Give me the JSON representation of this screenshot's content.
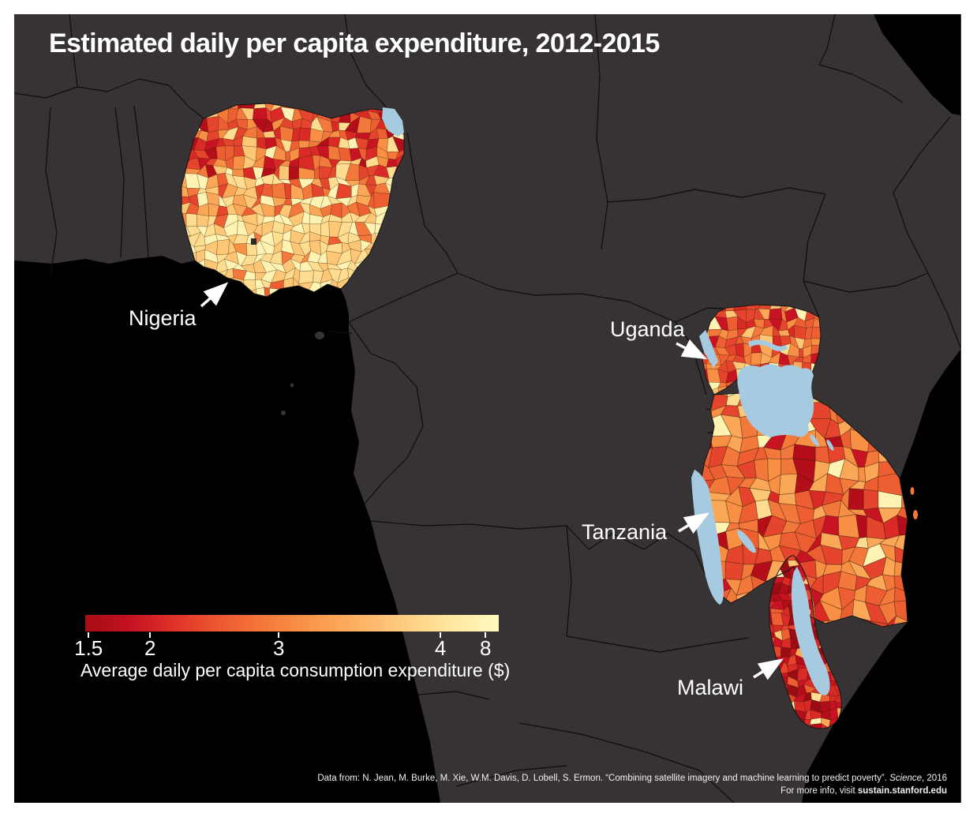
{
  "title": "Estimated daily per capita expenditure, 2012-2015",
  "map_labels": {
    "nigeria": "Nigeria",
    "uganda": "Uganda",
    "tanzania": "Tanzania",
    "malawi": "Malawi"
  },
  "legend": {
    "caption": "Average daily per capita consumption expenditure ($)",
    "ticks": [
      {
        "label": "1.5",
        "pos": 0.008
      },
      {
        "label": "2",
        "pos": 0.157
      },
      {
        "label": "3",
        "pos": 0.468
      },
      {
        "label": "4",
        "pos": 0.859
      },
      {
        "label": "8",
        "pos": 0.968
      }
    ],
    "gradient": [
      "#a50e15",
      "#c11020",
      "#dc2c26",
      "#ea512f",
      "#f26f38",
      "#f78b42",
      "#fba355",
      "#fcbb6e",
      "#fdd488",
      "#ffeaa4",
      "#fff9c0"
    ]
  },
  "credits": {
    "line1_prefix": "Data from: N. Jean, M. Burke, M. Xie, W.M. Davis, D. Lobell, S. Ermon. “Combining satellite imagery and machine learning to predict poverty”. ",
    "line1_journal": "Science",
    "line1_suffix": ", 2016",
    "line2_prefix": "For more info, visit ",
    "line2_site": "sustain.stanford.edu"
  },
  "colors": {
    "page_bg": "#ffffff",
    "ocean": "#000000",
    "land": "#373334",
    "country_border": "#0d0d0d",
    "lake": "#a6cbe0",
    "label_text": "#ffffff",
    "district_palette": [
      "#9c0c14",
      "#b30e1a",
      "#c81322",
      "#d92a25",
      "#e4452c",
      "#ed5f33",
      "#f3783b",
      "#f79045",
      "#fba758",
      "#fdc776",
      "#fedd90",
      "#fff3b4"
    ]
  }
}
